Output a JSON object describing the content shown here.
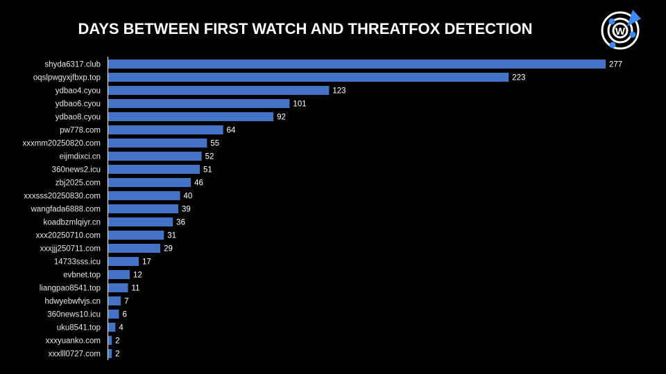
{
  "chart_data": {
    "type": "bar",
    "orientation": "horizontal",
    "title": "DAYS BETWEEN FIRST WATCH AND THREATFOX DETECTION",
    "xlabel": "",
    "ylabel": "",
    "xlim": [
      0,
      277
    ],
    "grid": false,
    "bar_color": "#4472C4",
    "categories": [
      "shyda6317.club",
      "oqslpwgyxjfbxp.top",
      "ydbao4.cyou",
      "ydbao6.cyou",
      "ydbao8.cyou",
      "pw778.com",
      "xxxmm20250820.com",
      "eijmdixci.cn",
      "360news2.icu",
      "zbj2025.com",
      "xxxsss20250830.com",
      "wangfada6888.com",
      "koadbzmlqiyr.cn",
      "xxx20250710.com",
      "xxxjjj250711.com",
      "14733sss.icu",
      "evbnet.top",
      "liangpao8541.top",
      "hdwyebwfvjs.cn",
      "360news10.icu",
      "uku8541.top",
      "xxxyuanko.com",
      "xxxlll0727.com"
    ],
    "values": [
      277,
      223,
      123,
      101,
      92,
      64,
      55,
      52,
      51,
      46,
      40,
      39,
      36,
      31,
      29,
      17,
      12,
      11,
      7,
      6,
      4,
      2,
      2
    ]
  },
  "logo": {
    "letter": "W",
    "accent": "#3D8BF2"
  }
}
